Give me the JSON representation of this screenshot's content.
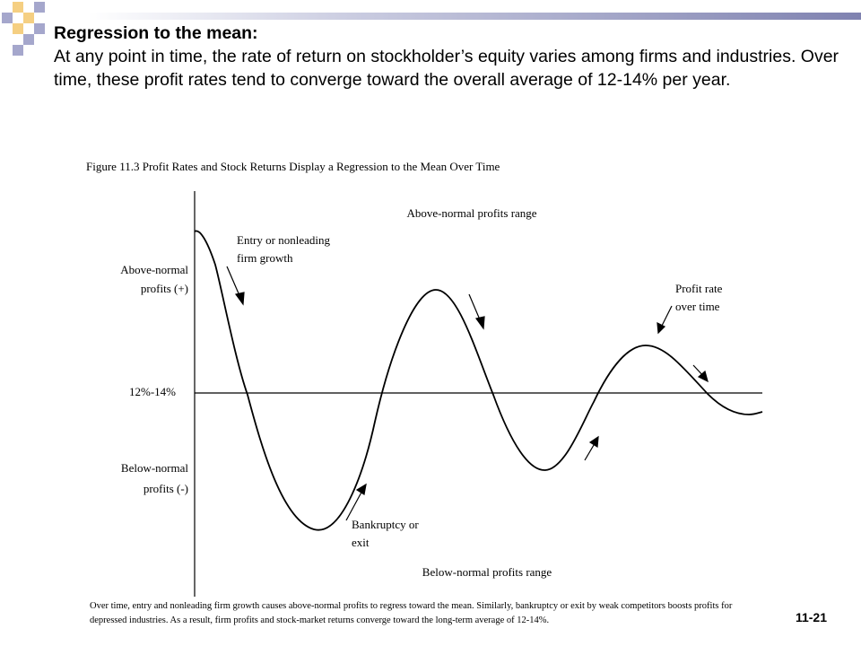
{
  "slide": {
    "heading": "Regression to the mean:",
    "body": "At any point in time, the rate of return on stockholder’s equity varies among firms and industries.  Over time, these profit rates tend to converge toward the overall average of 12-14% per year.",
    "page_number": "11-21"
  },
  "colors": {
    "square_light": "#f5cf82",
    "square_blue": "#a5a7cc",
    "bar_dark": "#7f82b0"
  },
  "figure": {
    "title": "Figure 11.3 Profit Rates and Stock Returns Display a Regression to the Mean Over Time",
    "y_labels": {
      "above_line1": "Above-normal",
      "above_line2": "profits (+)",
      "middle": "12%-14%",
      "below_line1": "Below-normal",
      "below_line2": "profits (-)"
    },
    "range_top": "Above-normal profits range",
    "range_bottom": "Below-normal profits range",
    "annotations": {
      "entry_line1": "Entry or nonleading",
      "entry_line2": "firm growth",
      "profit_line1": "Profit rate",
      "profit_line2": "over time",
      "bankruptcy_line1": "Bankruptcy or",
      "bankruptcy_line2": "exit"
    },
    "caption": "Over time, entry and nonleading firm growth causes above-normal profits to regress toward the mean. Similarly, bankruptcy or exit by weak competitors boosts profits for depressed industries. As a result, firm profits and stock-market returns converge toward the long-term average of 12-14%."
  }
}
